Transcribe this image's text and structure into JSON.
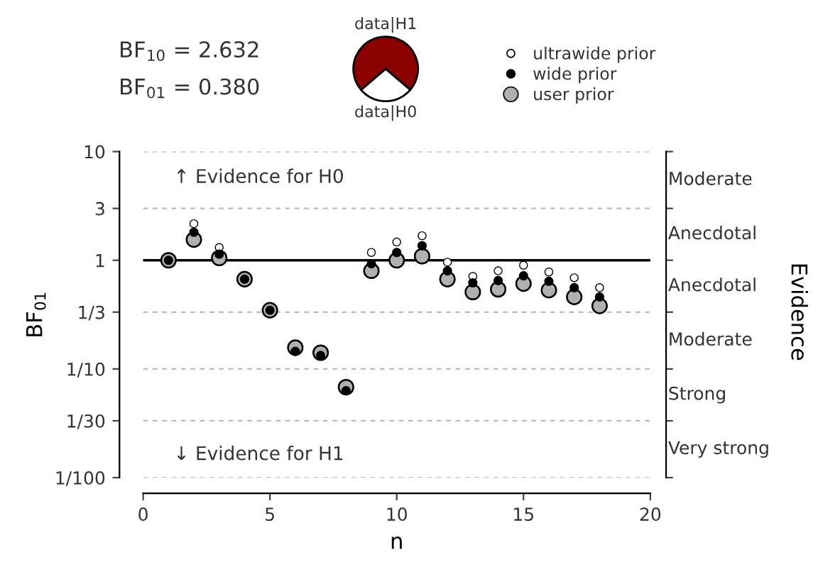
{
  "chart_data": [
    {
      "type": "scatter",
      "xlabel": "n",
      "ylabel": "BF$_{01}$",
      "x": [
        1,
        2,
        3,
        4,
        5,
        6,
        7,
        8,
        9,
        10,
        11,
        12,
        13,
        14,
        15,
        16,
        17,
        18
      ],
      "series": [
        {
          "name": "user prior",
          "color": "#b0b0b0",
          "values": [
            1.0,
            1.55,
            1.05,
            0.67,
            0.347,
            0.157,
            0.141,
            0.068,
            0.8,
            1.0,
            1.09,
            0.67,
            0.51,
            0.54,
            0.61,
            0.53,
            0.46,
            0.38
          ]
        },
        {
          "name": "wide prior",
          "color": "#000000",
          "values": [
            1.0,
            1.81,
            1.14,
            0.67,
            0.347,
            0.145,
            0.133,
            0.063,
            0.93,
            1.18,
            1.36,
            0.8,
            0.62,
            0.65,
            0.72,
            0.64,
            0.56,
            0.46
          ]
        },
        {
          "name": "ultrawide prior",
          "color": "#ffffff",
          "values": [
            null,
            2.17,
            1.31,
            null,
            null,
            null,
            null,
            null,
            1.18,
            1.47,
            1.68,
            0.96,
            0.71,
            0.8,
            0.9,
            0.78,
            0.69,
            0.56
          ]
        }
      ],
      "log": "y",
      "marker": "circle",
      "legend": "top right",
      "grid": "y",
      "xlim": [
        0,
        20
      ],
      "xticks": [
        0,
        5,
        10,
        15,
        20
      ],
      "ylim": [
        0.01,
        10
      ],
      "yticks": [
        10,
        3,
        1,
        {
          "value": 0.3333,
          "label": "1/3"
        },
        {
          "value": 0.1,
          "label": "1/10"
        },
        {
          "value": 0.03333,
          "label": "1/30"
        },
        {
          "value": 0.01,
          "label": "1/100"
        }
      ],
      "ref_lines": [
        {
          "axis": "y",
          "value": 1,
          "color": "#000000",
          "line_style": "solid"
        }
      ],
      "annotations": [
        "↑ Evidence for H0",
        "↓ Evidence for H1",
        "BF$_{10}$ = 2.632",
        "BF$_{01}$ = 0.380",
        "Evidence",
        "Moderate",
        "Anecdotal",
        "Anecdotal",
        "Moderate",
        "Strong",
        "Very strong"
      ]
    },
    {
      "type": "pie",
      "categories": [
        "data|H1",
        "data|H0"
      ],
      "values": [
        72.5,
        27.5
      ],
      "colors": [
        "#8b0000",
        "#ffffff"
      ]
    }
  ]
}
